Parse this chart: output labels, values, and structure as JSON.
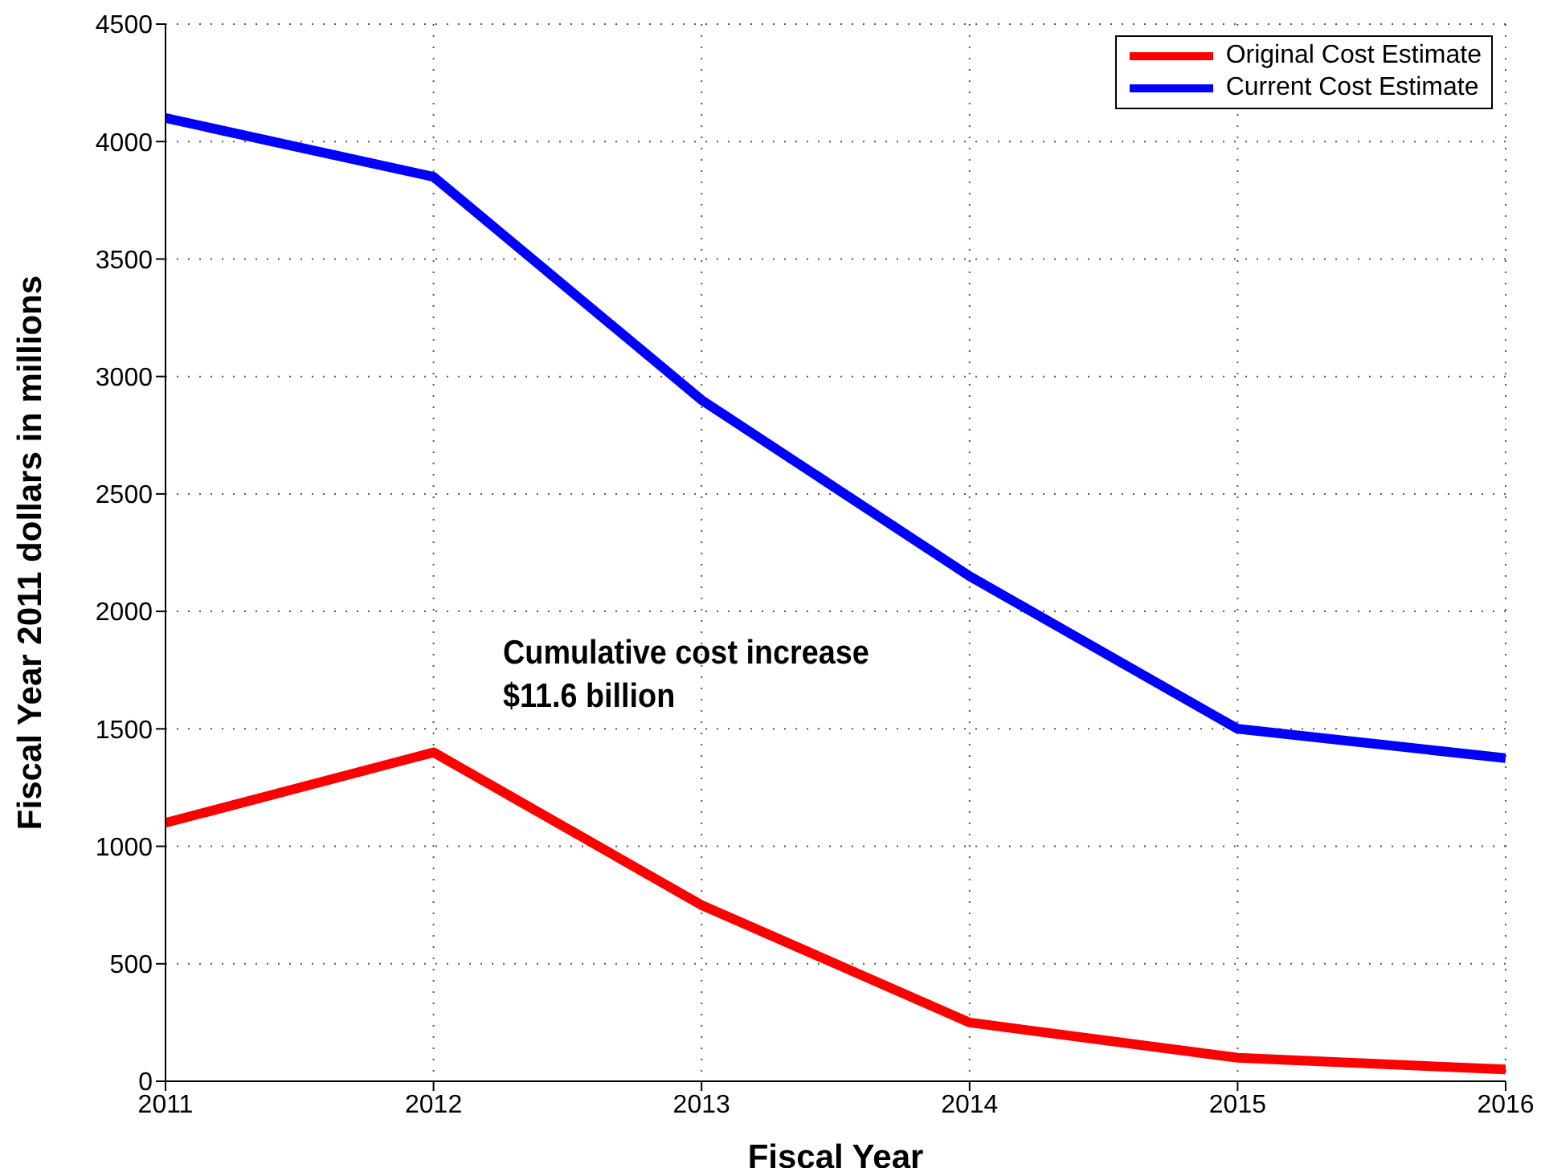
{
  "chart_data": {
    "type": "line",
    "xlabel": "Fiscal Year",
    "ylabel": "Fiscal Year 2011 dollars in millions",
    "x": [
      2011,
      2012,
      2013,
      2014,
      2015,
      2016
    ],
    "series": [
      {
        "name": "Original Cost Estimate",
        "color": "#ff0000",
        "values": [
          1100,
          1400,
          750,
          250,
          100,
          50
        ]
      },
      {
        "name": "Current Cost Estimate",
        "color": "#0000ff",
        "values": [
          4100,
          3850,
          2900,
          2150,
          1500,
          1375
        ]
      }
    ],
    "xlim": [
      2011,
      2016
    ],
    "xticks": [
      2011,
      2012,
      2013,
      2014,
      2015,
      2016
    ],
    "ylim": [
      0,
      4500
    ],
    "yticks": [
      0,
      500,
      1000,
      1500,
      2000,
      2500,
      3000,
      3500,
      4000,
      4500
    ],
    "grid": true,
    "legend": "top right",
    "marker": "none",
    "line_style": "solid",
    "annotations": [
      "Cumulative cost increase\n$11.6 billion"
    ]
  }
}
